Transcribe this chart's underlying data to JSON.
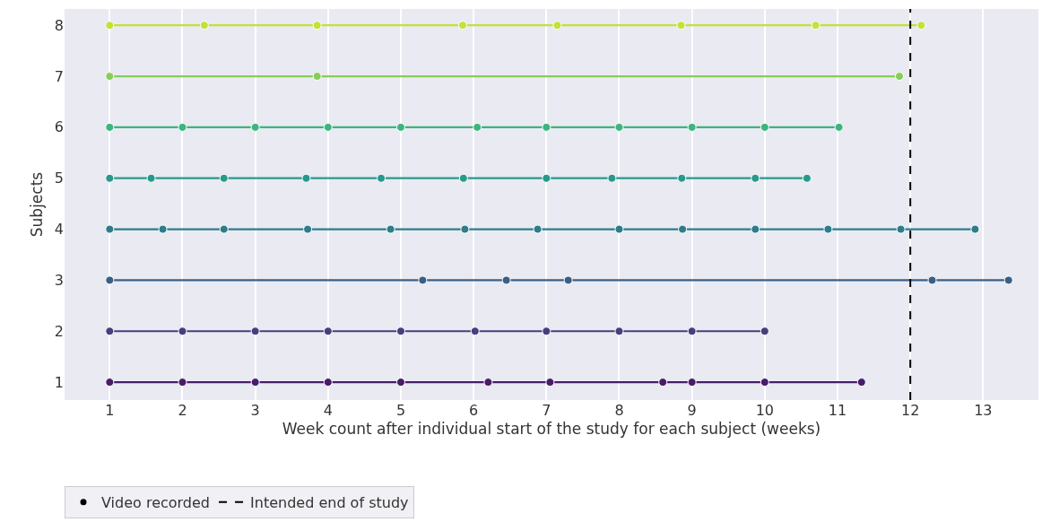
{
  "chart_data": {
    "type": "line",
    "xlabel": "Week count after individual start of the study for each subject (weeks)",
    "ylabel": "Subjects",
    "xlim": [
      0.38,
      13.76
    ],
    "xticks": [
      1,
      2,
      3,
      4,
      5,
      6,
      7,
      8,
      9,
      10,
      11,
      12,
      13
    ],
    "ylim": [
      0.65,
      8.32
    ],
    "yticks": [
      1,
      2,
      3,
      4,
      5,
      6,
      7,
      8
    ],
    "grid": "x",
    "marker": "circle",
    "line_style": "solid",
    "legend": "bottom left",
    "annotations": [
      "Video recorded"
    ],
    "ref_lines": [
      {
        "axis": "x",
        "value": 12,
        "label": "Intended end of study",
        "color": "#000000",
        "line_style": "dashed"
      }
    ],
    "series": [
      {
        "color": "#471d6b",
        "x": [
          1,
          2,
          3,
          4,
          5,
          6.2,
          7.05,
          8.6,
          9,
          10,
          11.33
        ],
        "values": [
          1,
          1,
          1,
          1,
          1,
          1,
          1,
          1,
          1,
          1,
          1
        ]
      },
      {
        "color": "#453f7f",
        "x": [
          1,
          2,
          3,
          4,
          5,
          6.02,
          7,
          8,
          9,
          10
        ],
        "values": [
          2,
          2,
          2,
          2,
          2,
          2,
          2,
          2,
          2,
          2
        ]
      },
      {
        "color": "#3a5f86",
        "x": [
          1,
          5.3,
          6.45,
          7.3,
          12.3,
          13.35
        ],
        "values": [
          3,
          3,
          3,
          3,
          3,
          3
        ]
      },
      {
        "color": "#2e7c8a",
        "x": [
          1,
          1.73,
          2.57,
          3.72,
          4.86,
          5.88,
          6.88,
          8,
          8.87,
          9.87,
          10.87,
          11.87,
          12.89
        ],
        "values": [
          4,
          4,
          4,
          4,
          4,
          4,
          4,
          4,
          4,
          4,
          4,
          4,
          4
        ]
      },
      {
        "color": "#27998a",
        "x": [
          1,
          1.57,
          2.57,
          3.7,
          4.73,
          5.86,
          7,
          7.9,
          8.86,
          9.87,
          10.58
        ],
        "values": [
          5,
          5,
          5,
          5,
          5,
          5,
          5,
          5,
          5,
          5,
          5
        ]
      },
      {
        "color": "#3db57e",
        "x": [
          1,
          2,
          3,
          4,
          5,
          6.05,
          7,
          8,
          9,
          10,
          11.02
        ],
        "values": [
          6,
          6,
          6,
          6,
          6,
          6,
          6,
          6,
          6,
          6,
          6
        ]
      },
      {
        "color": "#86ce5a",
        "x": [
          1,
          3.85,
          11.85
        ],
        "values": [
          7,
          7,
          7
        ]
      },
      {
        "color": "#c6df3a",
        "x": [
          1,
          2.3,
          3.85,
          5.85,
          7.15,
          8.85,
          10.7,
          12.15
        ],
        "values": [
          8,
          8,
          8,
          8,
          8,
          8,
          8,
          8
        ]
      }
    ]
  }
}
